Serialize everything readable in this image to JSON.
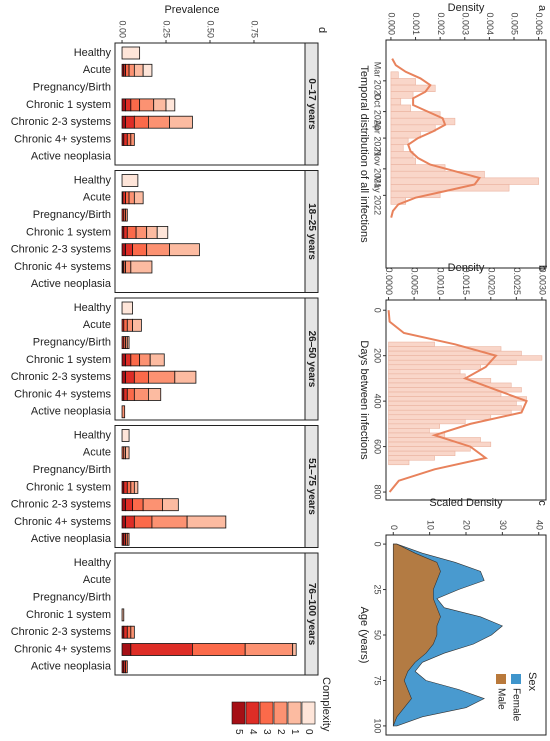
{
  "chart_data": [
    {
      "type": "histogram",
      "panel": "a",
      "xlabel": "Temporal distribution of all infections",
      "ylabel": "Density",
      "bins": [
        2020,
        2020.125,
        2020.25,
        2020.375,
        2020.5,
        2020.625,
        2020.75,
        2020.875,
        2021,
        2021.125,
        2021.25,
        2021.375,
        2021.5,
        2021.625,
        2021.75,
        2021.875,
        2022,
        2022.125,
        2022.25,
        2022.375,
        2022.5
      ],
      "values": [
        0.0003,
        0.001,
        0.0018,
        0.0009,
        0.0004,
        0.0008,
        0.002,
        0.0026,
        0.0018,
        0.0012,
        0.0007,
        0.0005,
        0.0009,
        0.001,
        0.0022,
        0.0038,
        0.006,
        0.0048,
        0.002,
        0.0006
      ],
      "color": "#f9d6c9",
      "curve": {
        "x": [
          2019.75,
          2019.875,
          2020,
          2020.125,
          2020.25,
          2020.375,
          2020.5,
          2020.625,
          2020.75,
          2020.875,
          2021,
          2021.125,
          2021.25,
          2021.375,
          2021.5,
          2021.625,
          2021.75,
          2021.875,
          2022,
          2022.125,
          2022.25,
          2022.375,
          2022.5,
          2022.625,
          2022.75
        ],
        "values": [
          5e-05,
          0.0002,
          0.0006,
          0.0012,
          0.0016,
          0.0014,
          0.0009,
          0.0009,
          0.0015,
          0.0021,
          0.0022,
          0.0017,
          0.0011,
          0.0007,
          0.0008,
          0.0011,
          0.0016,
          0.0026,
          0.0036,
          0.0034,
          0.0022,
          0.001,
          0.0003,
          8e-05,
          1e-05
        ],
        "color": "#e8825c"
      },
      "xlim": [
        2019.4,
        2023.7
      ],
      "xticks": [
        {
          "value": 2020.17,
          "label": "Mar 2020"
        },
        {
          "value": 2020.75,
          "label": "Oct 2020"
        },
        {
          "value": 2021.25,
          "label": "Apr 2021"
        },
        {
          "value": 2021.83,
          "label": "Nov 2021"
        },
        {
          "value": 2022.33,
          "label": "May 2022"
        }
      ],
      "ylim": [
        -0.0002,
        0.0063
      ],
      "yticks": [
        {
          "value": 0,
          "label": "0.000"
        },
        {
          "value": 0.001,
          "label": "0.001"
        },
        {
          "value": 0.002,
          "label": "0.002"
        },
        {
          "value": 0.003,
          "label": "0.003"
        },
        {
          "value": 0.004,
          "label": "0.004"
        },
        {
          "value": 0.005,
          "label": "0.005"
        },
        {
          "value": 0.006,
          "label": "0.006"
        }
      ]
    },
    {
      "type": "histogram",
      "panel": "b",
      "xlabel": "Days between infections",
      "ylabel": "Density",
      "bins": [
        140,
        160,
        180,
        200,
        220,
        240,
        260,
        280,
        300,
        320,
        340,
        360,
        380,
        400,
        420,
        440,
        460,
        480,
        500,
        520,
        540,
        560,
        580,
        600,
        620,
        640,
        660,
        680
      ],
      "values": [
        0.0009,
        0.0022,
        0.0026,
        0.003,
        0.0025,
        0.0018,
        0.0014,
        0.0015,
        0.002,
        0.0024,
        0.0026,
        0.0022,
        0.0027,
        0.0025,
        0.0026,
        0.0024,
        0.002,
        0.0015,
        0.001,
        0.0008,
        0.0011,
        0.0018,
        0.002,
        0.0016,
        0.0013,
        0.0009,
        0.0004
      ],
      "color": "#f9d6c9",
      "curve": {
        "x": [
          0,
          50,
          100,
          150,
          200,
          250,
          300,
          350,
          400,
          450,
          500,
          550,
          600,
          650,
          700,
          750,
          800
        ],
        "values": [
          0,
          2e-05,
          0.0003,
          0.0013,
          0.0021,
          0.0019,
          0.0015,
          0.0021,
          0.0027,
          0.0026,
          0.0016,
          0.0009,
          0.0016,
          0.0019,
          0.0009,
          0.0002,
          2e-05
        ],
        "color": "#e8825c"
      },
      "xlim": [
        -45,
        835
      ],
      "xticks": [
        0,
        200,
        400,
        600,
        800
      ],
      "ylim": [
        -5e-05,
        0.00308
      ],
      "yticks": [
        {
          "value": 0,
          "label": "0.0000"
        },
        {
          "value": 0.0005,
          "label": "0.0005"
        },
        {
          "value": 0.001,
          "label": "0.0010"
        },
        {
          "value": 0.0015,
          "label": "0.0015"
        },
        {
          "value": 0.002,
          "label": "0.0020"
        },
        {
          "value": 0.0025,
          "label": "0.0025"
        },
        {
          "value": 0.003,
          "label": "0.0030"
        }
      ]
    },
    {
      "type": "area",
      "panel": "c",
      "xlabel": "Age (years)",
      "ylabel": "Scaled Density",
      "legend_title": "Sex",
      "x": [
        0,
        5,
        10,
        15,
        20,
        25,
        30,
        35,
        40,
        45,
        50,
        55,
        60,
        65,
        70,
        75,
        80,
        85,
        90,
        95,
        100
      ],
      "series": [
        {
          "name": "Female",
          "color": "#3f95cc",
          "values": [
            1,
            8,
            17,
            24,
            25,
            18,
            12,
            14,
            24,
            30,
            27,
            22,
            14,
            8,
            6,
            9,
            18,
            25,
            20,
            8,
            1
          ]
        },
        {
          "name": "Male",
          "color": "#b9793b",
          "values": [
            1,
            6,
            12,
            13,
            12,
            11,
            11,
            12,
            13,
            12,
            12,
            11,
            9,
            6,
            4,
            3,
            4,
            5,
            3,
            1,
            0
          ]
        }
      ],
      "xlim": [
        -5,
        105
      ],
      "xticks": [
        0,
        25,
        50,
        75,
        100
      ],
      "ylim": [
        -2,
        42
      ],
      "yticks": [
        0,
        10,
        20,
        30,
        40
      ]
    },
    {
      "type": "stacked-bar",
      "panel": "d",
      "ylabel": "Prevalence",
      "legend_title": "Complexity",
      "categories": [
        "Healthy",
        "Acute",
        "Pregnancy/Birth",
        "Chronic 1 system",
        "Chronic 2-3 systems",
        "Chronic 4+ systems",
        "Active neoplasia"
      ],
      "facets": [
        "0–17 years",
        "18–25 years",
        "26–50 years",
        "51–75 years",
        "76–100 years"
      ],
      "series": [
        {
          "name": "0",
          "color": "#fee5d9",
          "values": [
            [
              0.1,
              0.05,
              0,
              0.05,
              0,
              0,
              0
            ],
            [
              0.09,
              0,
              0,
              0.06,
              0,
              0,
              0
            ],
            [
              0.06,
              0,
              0,
              0,
              0,
              0,
              0
            ],
            [
              0.04,
              0,
              0,
              0,
              0,
              0,
              0
            ],
            [
              0,
              0,
              0,
              0,
              0,
              0,
              0
            ]
          ]
        },
        {
          "name": "1",
          "color": "#fcbba1",
          "values": [
            [
              0,
              0.05,
              0,
              0.07,
              0.13,
              0,
              0
            ],
            [
              0,
              0.05,
              0,
              0.06,
              0.17,
              0.12,
              0
            ],
            [
              0,
              0.05,
              0.01,
              0.08,
              0.12,
              0.07,
              0
            ],
            [
              0,
              0.02,
              0,
              0.02,
              0.09,
              0.22,
              0
            ],
            [
              0,
              0,
              0,
              0.01,
              0,
              0.02,
              0
            ]
          ]
        },
        {
          "name": "2",
          "color": "#fc9272",
          "values": [
            [
              0,
              0.03,
              0,
              0.08,
              0.12,
              0.02,
              0
            ],
            [
              0,
              0.03,
              0.01,
              0.06,
              0.13,
              0.03,
              0
            ],
            [
              0,
              0.03,
              0.01,
              0.06,
              0.15,
              0.08,
              0.015
            ],
            [
              0,
              0.01,
              0,
              0.02,
              0.11,
              0.2,
              0.01
            ],
            [
              0,
              0,
              0,
              0,
              0.02,
              0.27,
              0
            ]
          ]
        },
        {
          "name": "3",
          "color": "#fb6a4a",
          "values": [
            [
              0,
              0.02,
              0,
              0.05,
              0.08,
              0.02,
              0
            ],
            [
              0,
              0.02,
              0.01,
              0.05,
              0.08,
              0.01,
              0
            ],
            [
              0,
              0.02,
              0.01,
              0.05,
              0.08,
              0.04,
              0
            ],
            [
              0,
              0.01,
              0,
              0.02,
              0.06,
              0.1,
              0.01
            ],
            [
              0,
              0,
              0,
              0,
              0.02,
              0.3,
              0.01
            ]
          ]
        },
        {
          "name": "4",
          "color": "#de2d26",
          "values": [
            [
              0,
              0.01,
              0,
              0.03,
              0.05,
              0.02,
              0
            ],
            [
              0,
              0.015,
              0.01,
              0.02,
              0.04,
              0.005,
              0
            ],
            [
              0,
              0.01,
              0.01,
              0.03,
              0.05,
              0.02,
              0
            ],
            [
              0,
              0,
              0,
              0.02,
              0.04,
              0.05,
              0.01
            ],
            [
              0,
              0,
              0,
              0,
              0.02,
              0.35,
              0.01
            ]
          ]
        },
        {
          "name": "5",
          "color": "#a50f15",
          "values": [
            [
              0,
              0.01,
              0,
              0.02,
              0.02,
              0.01,
              0
            ],
            [
              0,
              0.005,
              0,
              0.01,
              0.02,
              0.005,
              0
            ],
            [
              0,
              0,
              0,
              0.02,
              0.02,
              0.01,
              0
            ],
            [
              0,
              0,
              0,
              0.01,
              0.02,
              0.02,
              0.01
            ],
            [
              0,
              0,
              0,
              0,
              0.01,
              0.05,
              0.01
            ]
          ]
        }
      ],
      "ylim": [
        -0.04,
        1.04
      ],
      "yticks": [
        {
          "value": 0,
          "label": "0.00"
        },
        {
          "value": 0.25,
          "label": "0.25"
        },
        {
          "value": 0.5,
          "label": "0.50"
        },
        {
          "value": 0.75,
          "label": "0.75"
        }
      ]
    }
  ]
}
